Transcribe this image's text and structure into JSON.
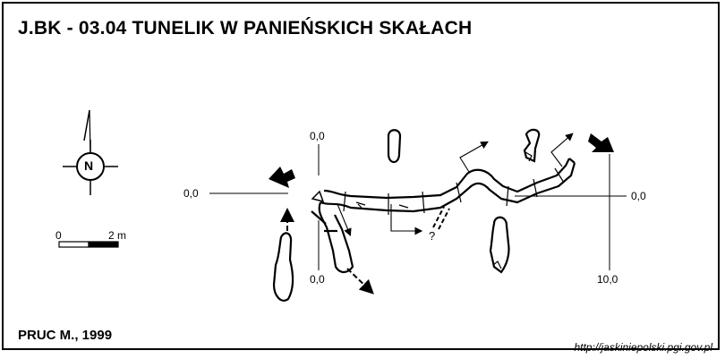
{
  "map": {
    "title": "J.BK - 03.04  TUNELIK W PANIEŃSKICH SKAŁACH",
    "author": "PRUC M., 1999",
    "source_url": "http://jaskiniepolski.pgi.gov.pl",
    "north_letter": "N",
    "scale": {
      "zero": "0",
      "length_label": "2 m"
    },
    "profile_labels": {
      "left_start": "0,0",
      "right_end": "0,0",
      "top_start": "0,0",
      "bottom_start": "0,0",
      "bottom_end": "10,0"
    },
    "unknown_mark": "?",
    "colors": {
      "ink": "#000000",
      "paper": "#ffffff"
    }
  }
}
